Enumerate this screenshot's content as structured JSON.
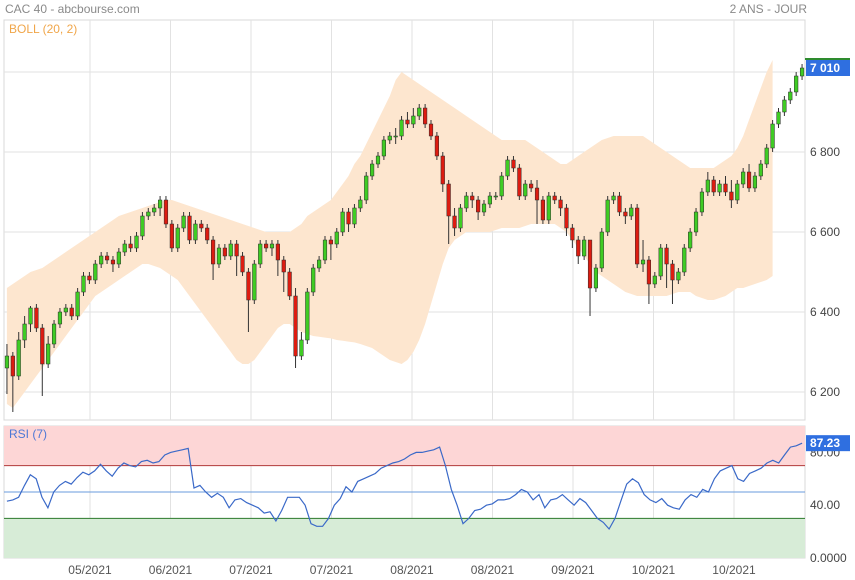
{
  "header": {
    "title": "CAC 40 - abcbourse.com",
    "period": "2 ANS - JOUR"
  },
  "chart_data": [
    {
      "type": "candlestick",
      "indicator_label": "BOLL (20, 2)",
      "last_price_label": "7 010",
      "ylim": [
        6130,
        7130
      ],
      "y_ticks": [
        6200,
        6400,
        6600,
        6800,
        7000
      ],
      "y_tick_labels": [
        "6 200",
        "6 400",
        "6 600",
        "6 800",
        "7 000"
      ],
      "x_tick_labels": [
        "05/2021",
        "06/2021",
        "07/2021",
        "07/2021",
        "08/2021",
        "08/2021",
        "09/2021",
        "10/2021",
        "10/2021"
      ],
      "grid": true,
      "colors": {
        "up": "#3fcc24",
        "down": "#dd1c11",
        "band": "#fde6cf",
        "label": "#f0a64a",
        "price_box": "#2f6fe0"
      },
      "candles": [
        [
          6260,
          6290,
          6195,
          6320
        ],
        [
          6290,
          6240,
          6150,
          6300
        ],
        [
          6240,
          6330,
          6230,
          6350
        ],
        [
          6330,
          6370,
          6310,
          6390
        ],
        [
          6370,
          6410,
          6350,
          6415
        ],
        [
          6410,
          6360,
          6350,
          6420
        ],
        [
          6360,
          6270,
          6190,
          6370
        ],
        [
          6270,
          6320,
          6260,
          6340
        ],
        [
          6320,
          6370,
          6310,
          6380
        ],
        [
          6370,
          6400,
          6360,
          6410
        ],
        [
          6400,
          6410,
          6390,
          6420
        ],
        [
          6410,
          6390,
          6380,
          6420
        ],
        [
          6390,
          6450,
          6380,
          6460
        ],
        [
          6450,
          6490,
          6440,
          6500
        ],
        [
          6490,
          6480,
          6470,
          6500
        ],
        [
          6480,
          6520,
          6470,
          6530
        ],
        [
          6520,
          6540,
          6510,
          6550
        ],
        [
          6540,
          6530,
          6520,
          6550
        ],
        [
          6530,
          6520,
          6500,
          6540
        ],
        [
          6520,
          6550,
          6510,
          6560
        ],
        [
          6550,
          6570,
          6540,
          6580
        ],
        [
          6570,
          6560,
          6550,
          6590
        ],
        [
          6560,
          6590,
          6550,
          6600
        ],
        [
          6590,
          6640,
          6580,
          6650
        ],
        [
          6640,
          6650,
          6630,
          6660
        ],
        [
          6650,
          6660,
          6640,
          6670
        ],
        [
          6660,
          6680,
          6640,
          6690
        ],
        [
          6680,
          6620,
          6610,
          6690
        ],
        [
          6620,
          6560,
          6550,
          6630
        ],
        [
          6560,
          6610,
          6550,
          6620
        ],
        [
          6610,
          6640,
          6600,
          6650
        ],
        [
          6640,
          6580,
          6570,
          6650
        ],
        [
          6580,
          6620,
          6570,
          6630
        ],
        [
          6620,
          6610,
          6600,
          6630
        ],
        [
          6610,
          6580,
          6570,
          6620
        ],
        [
          6580,
          6520,
          6480,
          6590
        ],
        [
          6520,
          6560,
          6510,
          6570
        ],
        [
          6560,
          6540,
          6530,
          6570
        ],
        [
          6540,
          6570,
          6530,
          6580
        ],
        [
          6570,
          6540,
          6490,
          6580
        ],
        [
          6540,
          6500,
          6490,
          6550
        ],
        [
          6500,
          6430,
          6350,
          6510
        ],
        [
          6430,
          6520,
          6420,
          6530
        ],
        [
          6520,
          6570,
          6510,
          6580
        ],
        [
          6570,
          6560,
          6550,
          6580
        ],
        [
          6560,
          6570,
          6540,
          6580
        ],
        [
          6570,
          6530,
          6490,
          6580
        ],
        [
          6530,
          6500,
          6450,
          6540
        ],
        [
          6500,
          6440,
          6430,
          6510
        ],
        [
          6440,
          6290,
          6260,
          6460
        ],
        [
          6290,
          6330,
          6280,
          6350
        ],
        [
          6330,
          6450,
          6320,
          6460
        ],
        [
          6450,
          6510,
          6440,
          6520
        ],
        [
          6510,
          6530,
          6500,
          6540
        ],
        [
          6530,
          6580,
          6520,
          6590
        ],
        [
          6580,
          6570,
          6530,
          6590
        ],
        [
          6570,
          6600,
          6560,
          6610
        ],
        [
          6600,
          6650,
          6590,
          6660
        ],
        [
          6650,
          6620,
          6600,
          6660
        ],
        [
          6620,
          6660,
          6610,
          6670
        ],
        [
          6660,
          6680,
          6650,
          6690
        ],
        [
          6680,
          6740,
          6670,
          6750
        ],
        [
          6740,
          6770,
          6730,
          6780
        ],
        [
          6770,
          6790,
          6760,
          6800
        ],
        [
          6790,
          6830,
          6780,
          6840
        ],
        [
          6830,
          6840,
          6820,
          6850
        ],
        [
          6840,
          6840,
          6820,
          6860
        ],
        [
          6840,
          6880,
          6830,
          6890
        ],
        [
          6880,
          6870,
          6860,
          6900
        ],
        [
          6870,
          6890,
          6860,
          6910
        ],
        [
          6890,
          6910,
          6880,
          6920
        ],
        [
          6910,
          6870,
          6860,
          6920
        ],
        [
          6870,
          6840,
          6830,
          6880
        ],
        [
          6840,
          6790,
          6780,
          6850
        ],
        [
          6790,
          6720,
          6700,
          6800
        ],
        [
          6720,
          6640,
          6570,
          6730
        ],
        [
          6640,
          6610,
          6590,
          6660
        ],
        [
          6610,
          6660,
          6600,
          6670
        ],
        [
          6660,
          6690,
          6650,
          6700
        ],
        [
          6690,
          6680,
          6660,
          6700
        ],
        [
          6680,
          6650,
          6630,
          6690
        ],
        [
          6650,
          6670,
          6640,
          6680
        ],
        [
          6670,
          6690,
          6660,
          6700
        ],
        [
          6690,
          6690,
          6680,
          6700
        ],
        [
          6690,
          6740,
          6680,
          6750
        ],
        [
          6740,
          6780,
          6730,
          6790
        ],
        [
          6780,
          6760,
          6750,
          6790
        ],
        [
          6760,
          6690,
          6680,
          6770
        ],
        [
          6690,
          6720,
          6680,
          6730
        ],
        [
          6720,
          6710,
          6700,
          6730
        ],
        [
          6710,
          6680,
          6620,
          6730
        ],
        [
          6680,
          6630,
          6620,
          6690
        ],
        [
          6630,
          6690,
          6620,
          6700
        ],
        [
          6690,
          6680,
          6670,
          6700
        ],
        [
          6680,
          6660,
          6640,
          6690
        ],
        [
          6660,
          6610,
          6590,
          6670
        ],
        [
          6610,
          6580,
          6560,
          6620
        ],
        [
          6580,
          6540,
          6520,
          6590
        ],
        [
          6540,
          6580,
          6530,
          6590
        ],
        [
          6580,
          6460,
          6390,
          6580
        ],
        [
          6460,
          6510,
          6450,
          6520
        ],
        [
          6510,
          6600,
          6500,
          6610
        ],
        [
          6600,
          6680,
          6590,
          6690
        ],
        [
          6680,
          6690,
          6670,
          6700
        ],
        [
          6690,
          6650,
          6640,
          6700
        ],
        [
          6650,
          6640,
          6620,
          6660
        ],
        [
          6640,
          6660,
          6630,
          6670
        ],
        [
          6660,
          6520,
          6510,
          6670
        ],
        [
          6520,
          6530,
          6500,
          6580
        ],
        [
          6530,
          6470,
          6420,
          6540
        ],
        [
          6470,
          6490,
          6460,
          6500
        ],
        [
          6490,
          6560,
          6480,
          6570
        ],
        [
          6560,
          6520,
          6460,
          6570
        ],
        [
          6520,
          6480,
          6420,
          6530
        ],
        [
          6480,
          6500,
          6470,
          6510
        ],
        [
          6500,
          6560,
          6490,
          6570
        ],
        [
          6560,
          6600,
          6550,
          6610
        ],
        [
          6600,
          6650,
          6590,
          6660
        ],
        [
          6650,
          6700,
          6640,
          6710
        ],
        [
          6700,
          6730,
          6690,
          6750
        ],
        [
          6730,
          6700,
          6690,
          6740
        ],
        [
          6700,
          6720,
          6690,
          6730
        ],
        [
          6720,
          6700,
          6690,
          6740
        ],
        [
          6700,
          6680,
          6660,
          6730
        ],
        [
          6680,
          6720,
          6670,
          6730
        ],
        [
          6720,
          6750,
          6710,
          6760
        ],
        [
          6750,
          6710,
          6700,
          6770
        ],
        [
          6710,
          6740,
          6700,
          6750
        ],
        [
          6740,
          6770,
          6730,
          6780
        ],
        [
          6770,
          6810,
          6760,
          6820
        ],
        [
          6810,
          6870,
          6800,
          6880
        ],
        [
          6870,
          6900,
          6860,
          6910
        ],
        [
          6900,
          6930,
          6890,
          6940
        ],
        [
          6930,
          6950,
          6920,
          6960
        ],
        [
          6950,
          6990,
          6940,
          7000
        ],
        [
          6990,
          7010,
          6980,
          7020
        ]
      ],
      "band_upper": [
        6460,
        6470,
        6480,
        6490,
        6500,
        6505,
        6510,
        6520,
        6530,
        6540,
        6550,
        6560,
        6570,
        6580,
        6590,
        6600,
        6610,
        6620,
        6630,
        6640,
        6645,
        6650,
        6655,
        6660,
        6665,
        6670,
        6675,
        6680,
        6680,
        6675,
        6670,
        6665,
        6660,
        6655,
        6650,
        6645,
        6640,
        6635,
        6630,
        6625,
        6620,
        6615,
        6610,
        6605,
        6600,
        6600,
        6600,
        6600,
        6600,
        6610,
        6620,
        6640,
        6650,
        6660,
        6670,
        6680,
        6700,
        6720,
        6740,
        6770,
        6790,
        6820,
        6850,
        6880,
        6910,
        6940,
        6980,
        7000,
        6990,
        6980,
        6970,
        6960,
        6950,
        6940,
        6930,
        6920,
        6910,
        6900,
        6890,
        6880,
        6870,
        6860,
        6850,
        6840,
        6830,
        6830,
        6830,
        6830,
        6830,
        6820,
        6810,
        6800,
        6790,
        6780,
        6770,
        6770,
        6780,
        6790,
        6800,
        6810,
        6820,
        6830,
        6835,
        6840,
        6840,
        6840,
        6840,
        6840,
        6840,
        6830,
        6820,
        6810,
        6800,
        6790,
        6780,
        6770,
        6760,
        6760,
        6760,
        6760,
        6760,
        6770,
        6780,
        6790,
        6810,
        6840,
        6880,
        6920,
        6960,
        7000,
        7030
      ],
      "band_lower": [
        6170,
        6160,
        6180,
        6200,
        6220,
        6240,
        6260,
        6280,
        6300,
        6320,
        6340,
        6360,
        6380,
        6400,
        6420,
        6440,
        6450,
        6460,
        6470,
        6480,
        6490,
        6500,
        6510,
        6520,
        6520,
        6515,
        6510,
        6500,
        6490,
        6480,
        6460,
        6440,
        6420,
        6400,
        6380,
        6360,
        6340,
        6320,
        6300,
        6280,
        6270,
        6270,
        6280,
        6300,
        6320,
        6340,
        6360,
        6370,
        6370,
        6360,
        6350,
        6345,
        6340,
        6338,
        6336,
        6334,
        6330,
        6328,
        6326,
        6324,
        6320,
        6315,
        6310,
        6300,
        6290,
        6280,
        6275,
        6270,
        6280,
        6300,
        6330,
        6370,
        6420,
        6470,
        6520,
        6560,
        6580,
        6590,
        6600,
        6600,
        6600,
        6600,
        6600,
        6605,
        6610,
        6610,
        6610,
        6610,
        6615,
        6620,
        6620,
        6620,
        6620,
        6620,
        6610,
        6600,
        6580,
        6560,
        6540,
        6520,
        6500,
        6490,
        6480,
        6470,
        6460,
        6450,
        6445,
        6440,
        6440,
        6440,
        6440,
        6440,
        6440,
        6445,
        6450,
        6450,
        6450,
        6440,
        6435,
        6430,
        6430,
        6435,
        6440,
        6450,
        6460,
        6460,
        6465,
        6470,
        6475,
        6480,
        6490
      ]
    },
    {
      "type": "line",
      "indicator_label": "RSI (7)",
      "last_value_label": "87.23",
      "ylim": [
        0,
        100
      ],
      "y_ticks": [
        0,
        40,
        80
      ],
      "y_tick_labels": [
        "0.0000",
        "40.00",
        "80.00"
      ],
      "zones": {
        "overbought": 70,
        "mid": 50,
        "oversold": 30
      },
      "colors": {
        "line": "#3a69c8",
        "over_fill": "#fdd6d6",
        "over_line": "#b03a3a",
        "under_fill": "#d7ecd7",
        "under_line": "#2d7a2d",
        "mid_line": "#6a9bdc",
        "value_box": "#2f6fe0",
        "label": "#4d78d6"
      },
      "values": [
        43,
        44,
        46,
        55,
        63,
        60,
        46,
        38,
        50,
        55,
        58,
        56,
        61,
        65,
        63,
        66,
        71,
        66,
        62,
        68,
        72,
        70,
        69,
        73,
        74,
        72,
        73,
        78,
        80,
        81,
        82,
        83,
        53,
        55,
        50,
        46,
        49,
        46,
        38,
        44,
        45,
        42,
        40,
        38,
        34,
        35,
        28,
        36,
        46,
        46,
        46,
        40,
        26,
        24,
        24,
        30,
        40,
        45,
        54,
        50,
        58,
        60,
        62,
        64,
        68,
        70,
        72,
        73,
        75,
        78,
        80,
        80,
        81,
        82,
        84,
        70,
        52,
        40,
        26,
        30,
        36,
        37,
        40,
        41,
        44,
        44,
        45,
        48,
        52,
        50,
        44,
        48,
        38,
        44,
        45,
        48,
        44,
        40,
        45,
        42,
        36,
        30,
        27,
        22,
        30,
        43,
        56,
        60,
        57,
        48,
        44,
        42,
        45,
        40,
        38,
        37,
        44,
        48,
        46,
        52,
        50,
        60,
        66,
        68,
        70,
        60,
        58,
        64,
        66,
        68,
        72,
        74,
        72,
        78,
        84,
        85,
        87
      ]
    }
  ]
}
